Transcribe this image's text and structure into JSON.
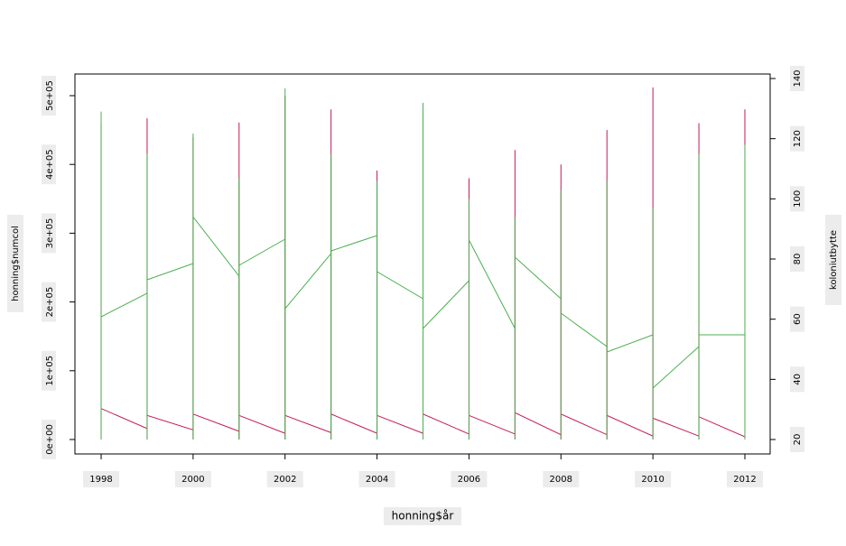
{
  "chart_data": {
    "type": "line",
    "x_label": "honning$år",
    "y_label": "honning$numcol",
    "y2_label": "koloniutbytte",
    "x": [
      1998,
      1998,
      1998,
      1999,
      1999,
      1999,
      1999,
      2000,
      2000,
      2000,
      2000,
      2001,
      2001,
      2001,
      2001,
      2002,
      2002,
      2002,
      2002,
      2003,
      2003,
      2003,
      2003,
      2004,
      2004,
      2004,
      2004,
      2005,
      2005,
      2005,
      2005,
      2006,
      2006,
      2006,
      2006,
      2007,
      2007,
      2007,
      2007,
      2008,
      2008,
      2008,
      2008,
      2009,
      2009,
      2009,
      2009,
      2010,
      2010,
      2010,
      2010,
      2011,
      2011,
      2011,
      2011,
      2012,
      2012,
      2012
    ],
    "series": [
      {
        "color": "#c2185b",
        "axis": "y",
        "values": [
          460000,
          0,
          45000,
          16000,
          467000,
          0,
          35000,
          14000,
          440000,
          0,
          37000,
          12000,
          461000,
          0,
          35000,
          9000,
          500000,
          0,
          35000,
          10000,
          480000,
          0,
          37000,
          9000,
          391000,
          0,
          35000,
          9000,
          480000,
          0,
          37000,
          8000,
          380000,
          0,
          35000,
          8000,
          421000,
          0,
          39000,
          7000,
          400000,
          0,
          37000,
          7000,
          450000,
          0,
          35000,
          5000,
          512000,
          0,
          31000,
          5000,
          460000,
          0,
          33000,
          4000,
          480000,
          0
        ]
      },
      {
        "color": "#4caf50",
        "axis": "y2",
        "values": [
          129,
          20,
          60.8,
          68.6,
          115,
          20,
          73.1,
          78.5,
          121.7,
          20,
          94,
          74.3,
          107,
          20,
          77.9,
          86.6,
          136.7,
          20,
          63.5,
          81.8,
          115,
          20,
          82.7,
          87.8,
          106,
          20,
          75.8,
          66.8,
          131.9,
          20,
          56.9,
          72.8,
          100,
          20,
          86.3,
          56.9,
          94,
          20,
          80.6,
          66.8,
          103,
          20,
          62,
          50.9,
          106,
          20,
          49.1,
          54.8,
          97,
          20,
          37.1,
          50.9,
          115,
          20,
          54.8,
          54.8,
          118,
          20
        ]
      }
    ],
    "xlim": [
      1997.43,
      2012.55
    ],
    "xticks": [
      1998,
      2000,
      2002,
      2004,
      2006,
      2008,
      2010,
      2012
    ],
    "ylim": [
      -21000,
      531500
    ],
    "yticks": [
      {
        "value": 0,
        "label": "0e+00"
      },
      {
        "value": 100000,
        "label": "1e+05"
      },
      {
        "value": 200000,
        "label": "2e+05"
      },
      {
        "value": 300000,
        "label": "3e+05"
      },
      {
        "value": 400000,
        "label": "4e+05"
      },
      {
        "value": 500000,
        "label": "5e+05"
      }
    ],
    "y2lim": [
      15.2,
      141.5
    ],
    "y2ticks": [
      20,
      40,
      60,
      80,
      100,
      120,
      140
    ]
  }
}
